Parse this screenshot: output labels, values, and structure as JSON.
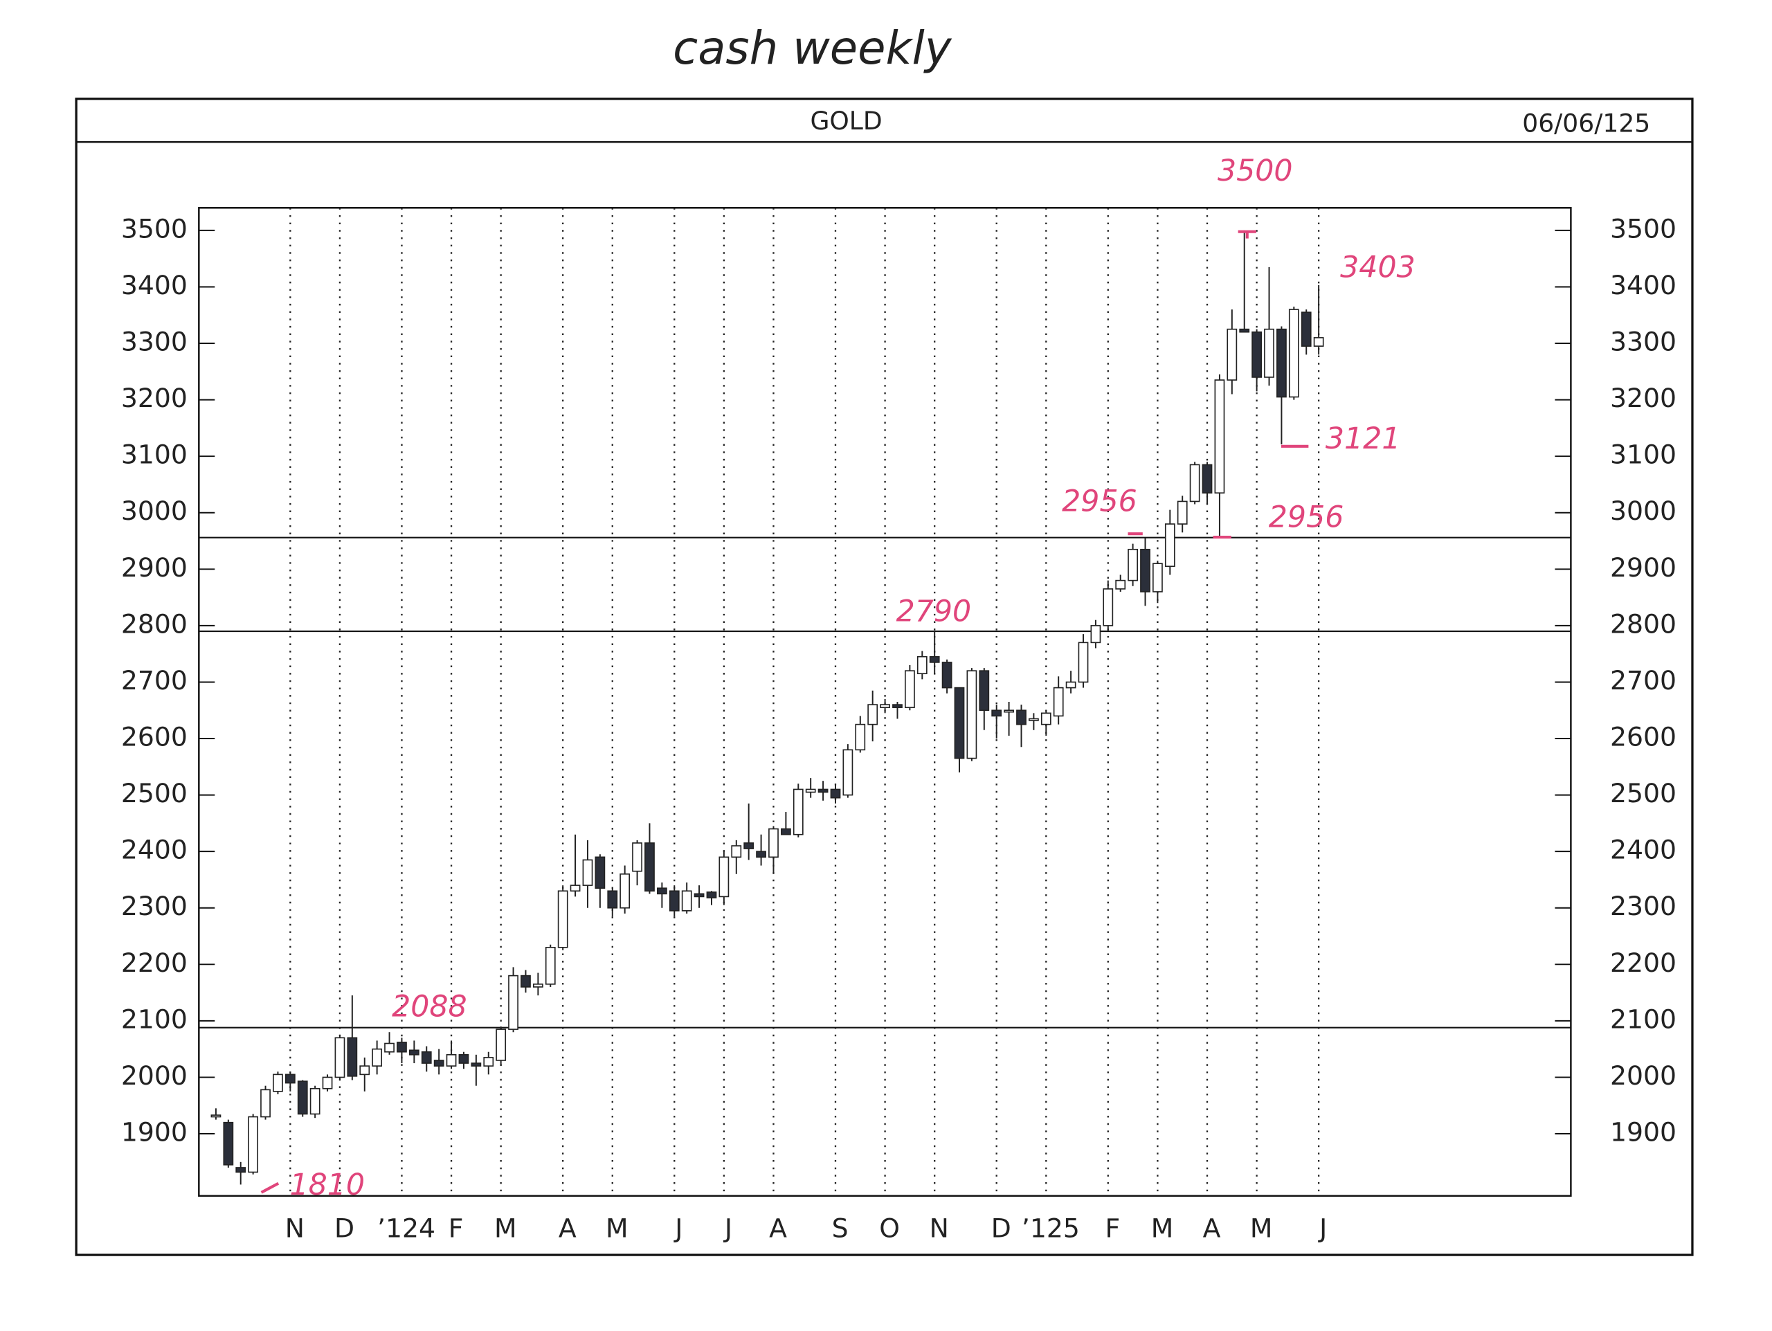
{
  "chart_data": {
    "type": "candlestick",
    "title": "GOLD",
    "date": "06/06/125",
    "subtitle": "cash weekly",
    "categories": [
      null,
      null,
      null,
      null,
      null,
      null,
      "N",
      null,
      null,
      null,
      "D",
      null,
      null,
      null,
      null,
      "’124",
      null,
      null,
      null,
      "F",
      null,
      null,
      null,
      "M",
      null,
      null,
      null,
      null,
      "A",
      null,
      null,
      null,
      "M",
      null,
      null,
      null,
      null,
      "J",
      null,
      null,
      null,
      "J",
      null,
      null,
      null,
      "A",
      null,
      null,
      null,
      null,
      "S",
      null,
      null,
      null,
      "O",
      null,
      null,
      null,
      "N",
      null,
      null,
      null,
      null,
      "D",
      null,
      null,
      null,
      "’125",
      null,
      null,
      null,
      null,
      "F",
      null,
      null,
      null,
      "M",
      null,
      null,
      null,
      "A",
      null,
      null,
      null,
      "M",
      null,
      null,
      null,
      null,
      "J"
    ],
    "open": [
      1932,
      1920,
      1840,
      1832,
      1930,
      1975,
      2005,
      1993,
      1935,
      1980,
      2000,
      2070,
      2005,
      2020,
      2045,
      2062,
      2048,
      2045,
      2030,
      2020,
      2040,
      2025,
      2020,
      2030,
      2085,
      2180,
      2160,
      2165,
      2230,
      2330,
      2340,
      2390,
      2330,
      2300,
      2365,
      2415,
      2335,
      2330,
      2295,
      2325,
      2328,
      2320,
      2390,
      2415,
      2400,
      2390,
      2440,
      2430,
      2505,
      2510,
      2510,
      2500,
      2580,
      2625,
      2655,
      2660,
      2655,
      2715,
      2745,
      2735,
      2690,
      2565,
      2720,
      2650,
      2650,
      2650,
      2632,
      2625,
      2640,
      2690,
      2700,
      2770,
      2800,
      2865,
      2880,
      2935,
      2860,
      2905,
      2980,
      3020,
      3085,
      3035,
      3235,
      3325,
      3320,
      3240,
      3325,
      3205,
      3355,
      3295
    ],
    "high": [
      1945,
      1925,
      1850,
      1935,
      1985,
      2010,
      2010,
      1995,
      1985,
      2005,
      2075,
      2145,
      2035,
      2065,
      2080,
      2070,
      2065,
      2055,
      2050,
      2065,
      2045,
      2040,
      2045,
      2090,
      2195,
      2190,
      2185,
      2235,
      2340,
      2430,
      2420,
      2395,
      2335,
      2375,
      2420,
      2450,
      2345,
      2340,
      2345,
      2340,
      2330,
      2400,
      2420,
      2485,
      2430,
      2445,
      2470,
      2520,
      2530,
      2525,
      2520,
      2590,
      2640,
      2685,
      2670,
      2665,
      2730,
      2755,
      2790,
      2740,
      2690,
      2725,
      2725,
      2660,
      2665,
      2660,
      2645,
      2650,
      2710,
      2720,
      2785,
      2810,
      2880,
      2890,
      2945,
      2955,
      2915,
      3005,
      3030,
      3090,
      3090,
      3245,
      3360,
      3500,
      3325,
      3435,
      3330,
      3365,
      3360,
      3403
    ],
    "low": [
      1925,
      1840,
      1810,
      1828,
      1925,
      1970,
      1975,
      1930,
      1928,
      1975,
      1995,
      1995,
      1975,
      2005,
      2040,
      2025,
      2025,
      2010,
      2005,
      2015,
      2015,
      1985,
      2005,
      2020,
      2080,
      2150,
      2145,
      2160,
      2225,
      2320,
      2300,
      2300,
      2285,
      2290,
      2340,
      2325,
      2300,
      2285,
      2290,
      2300,
      2305,
      2305,
      2360,
      2385,
      2375,
      2360,
      2430,
      2425,
      2495,
      2490,
      2485,
      2495,
      2575,
      2595,
      2645,
      2635,
      2650,
      2705,
      2715,
      2680,
      2540,
      2560,
      2615,
      2600,
      2605,
      2585,
      2615,
      2605,
      2625,
      2680,
      2690,
      2760,
      2790,
      2860,
      2870,
      2835,
      2840,
      2890,
      2965,
      3015,
      3015,
      2956,
      3210,
      3320,
      3215,
      3225,
      3121,
      3200,
      3280,
      3280
    ],
    "close": [
      1933,
      1845,
      1832,
      1930,
      1978,
      2005,
      1990,
      1935,
      1980,
      2000,
      2070,
      2002,
      2020,
      2050,
      2060,
      2045,
      2040,
      2025,
      2020,
      2040,
      2025,
      2020,
      2035,
      2085,
      2180,
      2160,
      2165,
      2230,
      2330,
      2340,
      2385,
      2335,
      2300,
      2360,
      2415,
      2330,
      2325,
      2295,
      2330,
      2320,
      2318,
      2390,
      2410,
      2405,
      2390,
      2440,
      2430,
      2510,
      2510,
      2505,
      2495,
      2580,
      2625,
      2660,
      2660,
      2655,
      2720,
      2745,
      2735,
      2690,
      2565,
      2720,
      2650,
      2640,
      2650,
      2625,
      2635,
      2645,
      2690,
      2700,
      2770,
      2800,
      2865,
      2880,
      2935,
      2860,
      2910,
      2980,
      3020,
      3085,
      3035,
      3235,
      3325,
      3320,
      3240,
      3325,
      3205,
      3360,
      3295,
      3310
    ],
    "up_color": "#ffffff",
    "down_color": "#2b2f3a",
    "ylim": [
      1790,
      3540
    ],
    "yticks": [
      1900,
      2000,
      2100,
      2200,
      2300,
      2400,
      2500,
      2600,
      2700,
      2800,
      2900,
      3000,
      3100,
      3200,
      3300,
      3400,
      3500
    ],
    "levels": [
      2956,
      2790,
      2088
    ],
    "annotations": [
      {
        "label": "3500"
      },
      {
        "label": "3403"
      },
      {
        "label": "3121"
      },
      {
        "label": "2956"
      },
      {
        "label": "2956"
      },
      {
        "label": "2790"
      },
      {
        "label": "2088"
      },
      {
        "label": "1810"
      }
    ],
    "annotation_color": "#e0457b"
  }
}
